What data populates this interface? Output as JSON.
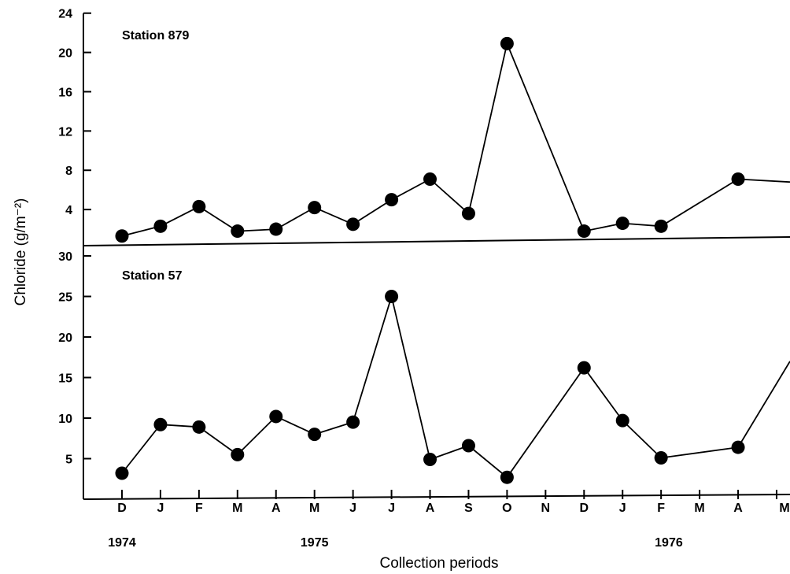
{
  "chart_data": {
    "type": "line",
    "ylabel": "Chloride (g/m⁻²)",
    "xlabel": "Collection periods",
    "months": [
      "D",
      "J",
      "F",
      "M",
      "A",
      "M",
      "J",
      "J",
      "A",
      "S",
      "O",
      "N",
      "D",
      "J",
      "F",
      "M",
      "A",
      "M"
    ],
    "years": [
      {
        "label": "1974",
        "at_month_index": 0
      },
      {
        "label": "1975",
        "at_month_index": 5
      },
      {
        "label": "1976",
        "at_month_index": 14.2
      }
    ],
    "panels": [
      {
        "title": "Station  879",
        "yticks": [
          4,
          8,
          12,
          16,
          20,
          24
        ],
        "ylim": [
          0,
          24
        ],
        "points": [
          {
            "month_index": 0,
            "value": 1.3
          },
          {
            "month_index": 1,
            "value": 2.3
          },
          {
            "month_index": 2,
            "value": 4.3
          },
          {
            "month_index": 3,
            "value": 1.8
          },
          {
            "month_index": 4,
            "value": 2.0
          },
          {
            "month_index": 5,
            "value": 4.2
          },
          {
            "month_index": 6,
            "value": 2.5
          },
          {
            "month_index": 7,
            "value": 5.0
          },
          {
            "month_index": 8,
            "value": 7.1
          },
          {
            "month_index": 9,
            "value": 3.6
          },
          {
            "month_index": 10,
            "value": 20.9
          },
          {
            "month_index": 12,
            "value": 1.8
          },
          {
            "month_index": 13,
            "value": 2.6
          },
          {
            "month_index": 14,
            "value": 2.3
          },
          {
            "month_index": 16,
            "value": 7.1
          }
        ],
        "trailing_value": 6.8
      },
      {
        "title": "Station  57",
        "yticks": [
          5,
          10,
          15,
          20,
          25,
          30
        ],
        "ylim": [
          0,
          30
        ],
        "points": [
          {
            "month_index": 0,
            "value": 3.2
          },
          {
            "month_index": 1,
            "value": 9.2
          },
          {
            "month_index": 2,
            "value": 8.9
          },
          {
            "month_index": 3,
            "value": 5.5
          },
          {
            "month_index": 4,
            "value": 10.2
          },
          {
            "month_index": 5,
            "value": 8.0
          },
          {
            "month_index": 6,
            "value": 9.5
          },
          {
            "month_index": 7,
            "value": 25.0
          },
          {
            "month_index": 8,
            "value": 4.9
          },
          {
            "month_index": 9,
            "value": 6.6
          },
          {
            "month_index": 10,
            "value": 2.7
          },
          {
            "month_index": 12,
            "value": 16.2
          },
          {
            "month_index": 13,
            "value": 9.7
          },
          {
            "month_index": 14,
            "value": 5.1
          },
          {
            "month_index": 16,
            "value": 6.4
          }
        ],
        "trailing_value": 17.0
      }
    ]
  }
}
